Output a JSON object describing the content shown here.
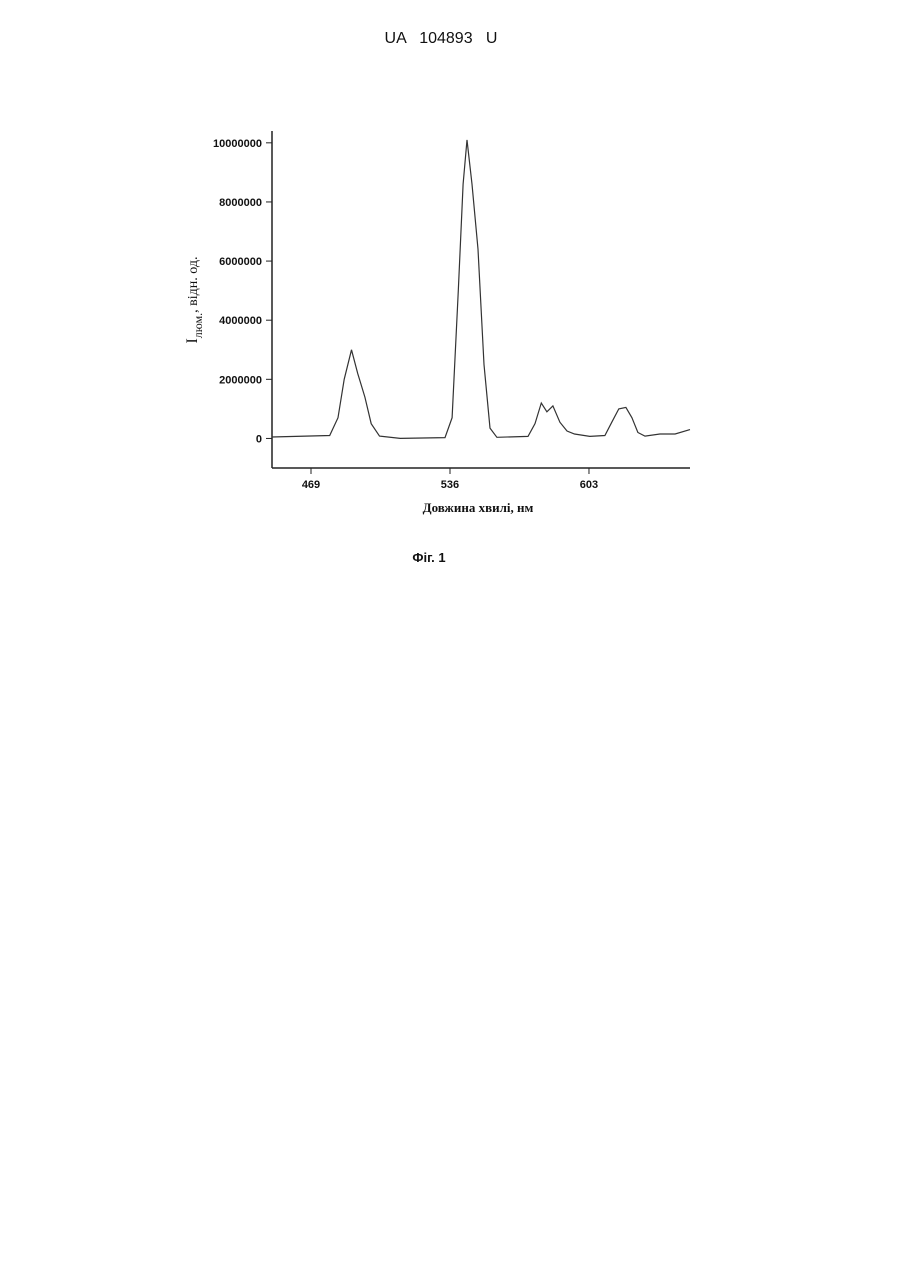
{
  "header": {
    "title": "UA   104893   U"
  },
  "caption": "Фіг. 1",
  "chart_data": {
    "type": "line",
    "ylabel": [
      "I",
      "люм.",
      ", відн. од."
    ],
    "xlabel": "Довжина хвилі, нм",
    "x": [
      450,
      478,
      482,
      485,
      488.5,
      491.5,
      495,
      498,
      502,
      512,
      533.6,
      537,
      540,
      542.3,
      544.2,
      546.6,
      549.5,
      552.4,
      555.3,
      558.6,
      573.6,
      577,
      580,
      582.7,
      585.6,
      589,
      592.4,
      596,
      603.4,
      610.7,
      614,
      617.4,
      620.8,
      623.7,
      626.6,
      630,
      637.2,
      644.5,
      651.7
    ],
    "series": [
      {
        "color": "#333333",
        "values": [
          50000,
          100000,
          700000,
          2000000,
          3000000,
          2200000,
          1400000,
          500000,
          80000,
          0,
          30000,
          700000,
          5000000,
          8600000,
          10100000,
          8600000,
          6400000,
          2500000,
          350000,
          40000,
          70000,
          500000,
          1200000,
          900000,
          1100000,
          550000,
          250000,
          150000,
          70000,
          100000,
          550000,
          1000000,
          1050000,
          700000,
          200000,
          80000,
          150000,
          150000,
          300000
        ]
      }
    ],
    "xlim": [
      450.2,
      651.7
    ],
    "xticks": [
      469,
      536,
      603
    ],
    "ylim": [
      -1000000,
      10400000
    ],
    "yticks": [
      0,
      2000000,
      4000000,
      6000000,
      8000000,
      10000000
    ]
  }
}
